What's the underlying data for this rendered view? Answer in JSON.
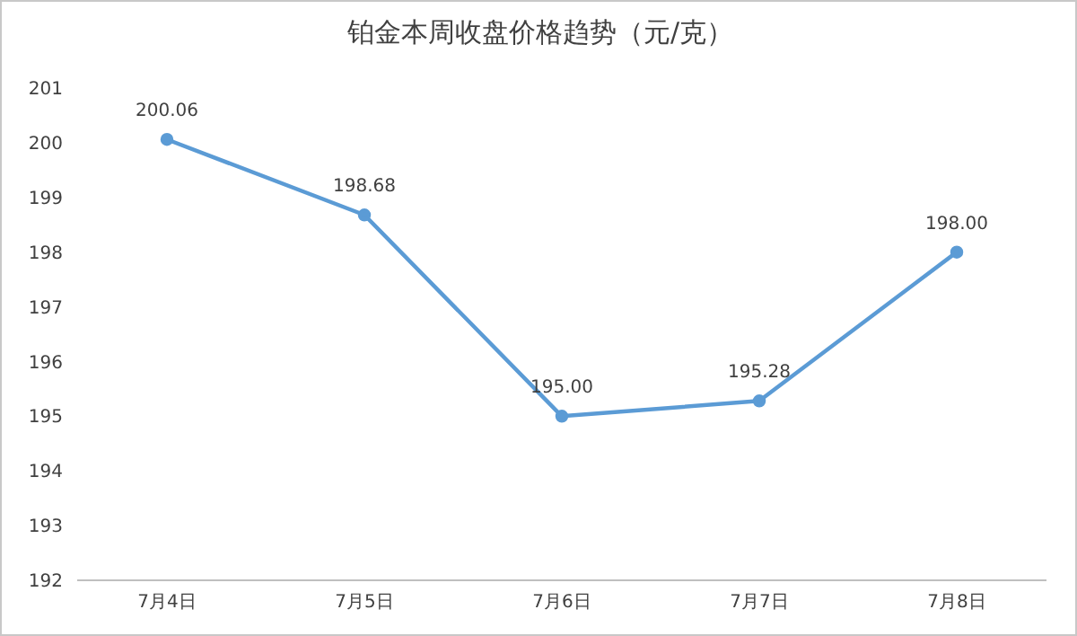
{
  "chart_data": {
    "type": "line",
    "title": "铂金本周收盘价格趋势（元/克）",
    "categories": [
      "7月4日",
      "7月5日",
      "7月6日",
      "7月7日",
      "7月8日"
    ],
    "series": [
      {
        "color": "#5b9bd5",
        "values": [
          200.06,
          198.68,
          195.0,
          195.28,
          198.0
        ]
      }
    ],
    "value_labels": [
      "200.06",
      "198.68",
      "195.00",
      "195.28",
      "198.00"
    ],
    "ylim": [
      192,
      201
    ],
    "yticks": [
      192,
      193,
      194,
      195,
      196,
      197,
      198,
      199,
      200,
      201
    ],
    "marker": "circle",
    "legend": false,
    "grid": false
  }
}
